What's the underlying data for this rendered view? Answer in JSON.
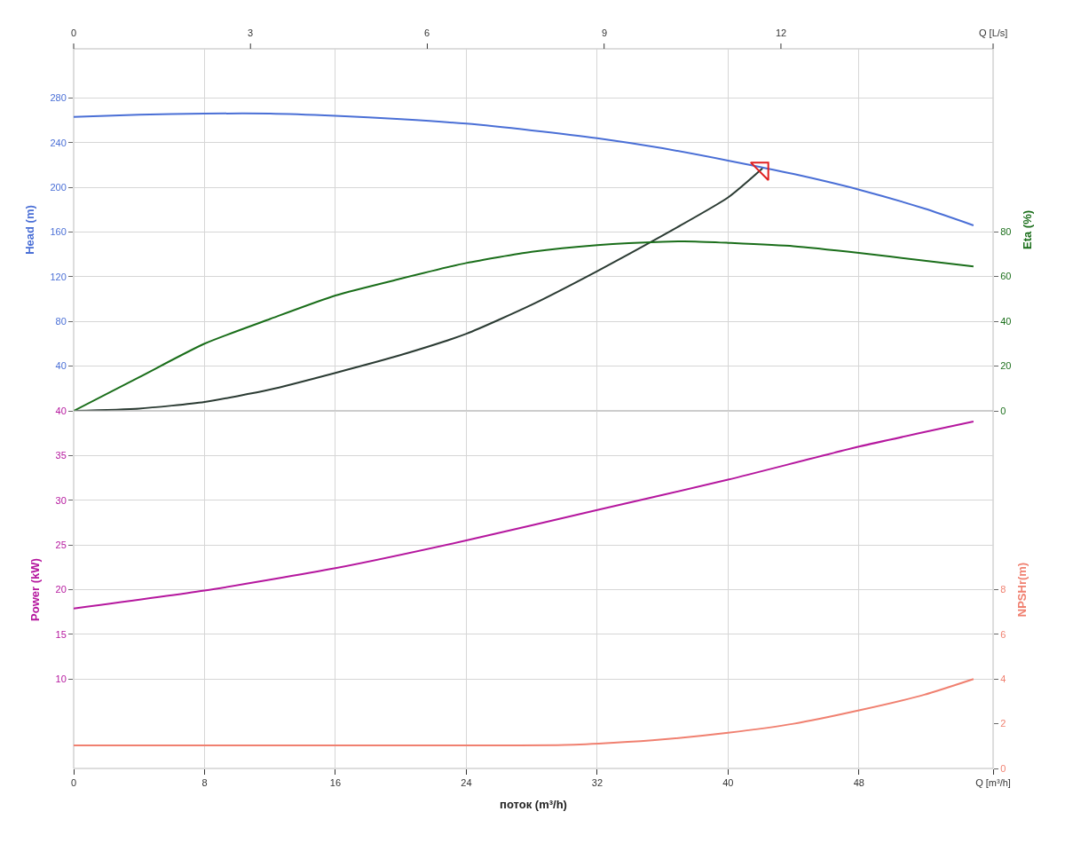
{
  "chart_data": [
    {
      "type": "line",
      "ylabel": "Head (m)",
      "y2label": "Eta (%)",
      "xlim": [
        0,
        56.2
      ],
      "xticks": [
        0,
        8,
        16,
        24,
        32,
        40,
        48
      ],
      "x2lim": [
        0,
        15.6
      ],
      "x2ticks": [
        0,
        3,
        6,
        9,
        12,
        {
          "value": 15.6,
          "label": "Q [L/s]"
        }
      ],
      "ylim": [
        0,
        324
      ],
      "yticks": [
        40,
        80,
        120,
        160,
        200,
        240,
        280
      ],
      "y2lim": [
        0,
        161.6
      ],
      "y2ticks": [
        0,
        20,
        40,
        60,
        80
      ],
      "tick_labels": "y",
      "grid": true,
      "line_style": "solid",
      "marker": "none",
      "series": [
        {
          "color": "#4a6fd6",
          "x": [
            0,
            4,
            8,
            12,
            16,
            20,
            24,
            28,
            32,
            36,
            40,
            44,
            48,
            52,
            55
          ],
          "values": [
            263,
            265,
            266,
            266,
            264,
            261,
            257,
            251,
            244,
            235,
            224,
            212,
            198,
            181,
            166
          ]
        },
        {
          "color": "#1a6e1a",
          "axis": "y2",
          "x": [
            0,
            4,
            8,
            12,
            16,
            20,
            24,
            28,
            32,
            36,
            38,
            40,
            44,
            48,
            52,
            55
          ],
          "values": [
            0,
            15,
            30,
            41,
            51.5,
            59,
            66,
            71,
            74,
            75.5,
            75.6,
            75,
            73.5,
            70.5,
            67,
            64.5
          ]
        },
        {
          "color": "#2b3b33",
          "x": [
            0,
            4,
            8,
            12,
            16,
            20,
            24,
            28,
            32,
            36,
            40,
            42.1
          ],
          "values": [
            0,
            2,
            8,
            19,
            34,
            50,
            69,
            95,
            125,
            157,
            191,
            217
          ]
        },
        {
          "type": "scatter",
          "color": "#e02020",
          "marker": "triangle",
          "x": [
            42.1
          ],
          "values": [
            217
          ]
        }
      ]
    },
    {
      "type": "line",
      "xlabel": "поток (m³/h)",
      "ylabel": "Power (kW)",
      "y2label": "NPSHr(m)",
      "xlim": [
        0,
        56.2
      ],
      "xticks": [
        0,
        8,
        16,
        24,
        32,
        40,
        48,
        {
          "value": 56.2,
          "label": "Q [m³/h]"
        }
      ],
      "ylim": [
        0,
        40
      ],
      "yticks": [
        10,
        15,
        20,
        25,
        30,
        35,
        40
      ],
      "y2lim": [
        0,
        16
      ],
      "y2ticks": [
        0,
        2,
        4,
        6,
        8
      ],
      "grid": true,
      "line_style": "solid",
      "marker": "none",
      "series": [
        {
          "color": "#b5179e",
          "x": [
            0,
            8,
            16,
            24,
            32,
            40,
            48,
            55
          ],
          "values": [
            17.9,
            19.9,
            22.4,
            25.5,
            28.9,
            32.3,
            36,
            38.8
          ]
        },
        {
          "color": "#f08070",
          "axis": "y2",
          "x": [
            0,
            8,
            16,
            24,
            30,
            33,
            36,
            40,
            44,
            48,
            52,
            55
          ],
          "values": [
            1.03,
            1.03,
            1.03,
            1.03,
            1.05,
            1.15,
            1.3,
            1.6,
            2,
            2.6,
            3.3,
            4
          ]
        }
      ]
    }
  ]
}
